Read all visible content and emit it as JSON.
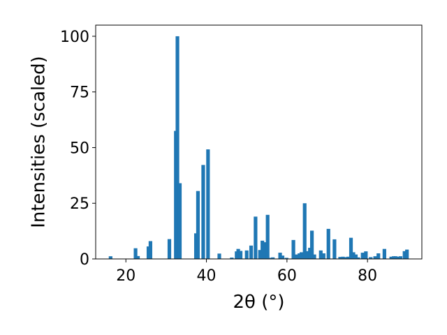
{
  "chart_data": {
    "type": "bar",
    "color": "#1f77b4",
    "xlabel": "2θ (°)",
    "ylabel": "Intensities (scaled)",
    "xlim": [
      12.5,
      93.5
    ],
    "ylim": [
      0,
      105
    ],
    "xticks": [
      20,
      40,
      60,
      80
    ],
    "yticks": [
      0,
      25,
      50,
      75,
      100
    ],
    "bar_width": 0.9,
    "x": [
      16.2,
      22.4,
      23.0,
      25.6,
      26.1,
      30.8,
      32.4,
      32.8,
      33.4,
      37.4,
      37.9,
      39.2,
      40.4,
      43.2,
      46.3,
      47.5,
      47.9,
      48.5,
      50.0,
      51.1,
      52.2,
      53.3,
      53.9,
      54.5,
      55.2,
      55.9,
      56.5,
      58.3,
      58.9,
      59.9,
      61.6,
      62.4,
      63.1,
      63.6,
      64.4,
      65.0,
      65.7,
      66.2,
      66.8,
      68.4,
      69.1,
      70.3,
      71.8,
      73.2,
      73.9,
      74.6,
      75.2,
      75.9,
      76.5,
      77.1,
      77.7,
      78.8,
      79.6,
      80.8,
      81.9,
      82.7,
      84.2,
      85.9,
      86.5,
      87.0,
      87.6,
      88.2,
      89.2,
      89.8
    ],
    "values": [
      1.2,
      4.8,
      1.3,
      5.6,
      8.0,
      8.9,
      57.5,
      100.0,
      34.0,
      11.5,
      30.5,
      42.2,
      49.2,
      2.4,
      0.6,
      3.4,
      4.5,
      3.6,
      3.8,
      6.0,
      19.0,
      4.0,
      8.2,
      7.5,
      19.8,
      0.5,
      0.7,
      2.8,
      1.5,
      0.5,
      8.5,
      2.0,
      2.5,
      3.0,
      25.0,
      3.5,
      5.0,
      12.7,
      2.0,
      3.8,
      2.5,
      13.5,
      8.8,
      0.9,
      1.0,
      0.8,
      1.0,
      9.5,
      3.0,
      2.0,
      0.7,
      2.8,
      3.4,
      0.8,
      1.2,
      2.5,
      4.5,
      1.0,
      1.2,
      1.2,
      1.0,
      1.2,
      3.5,
      4.2
    ]
  }
}
